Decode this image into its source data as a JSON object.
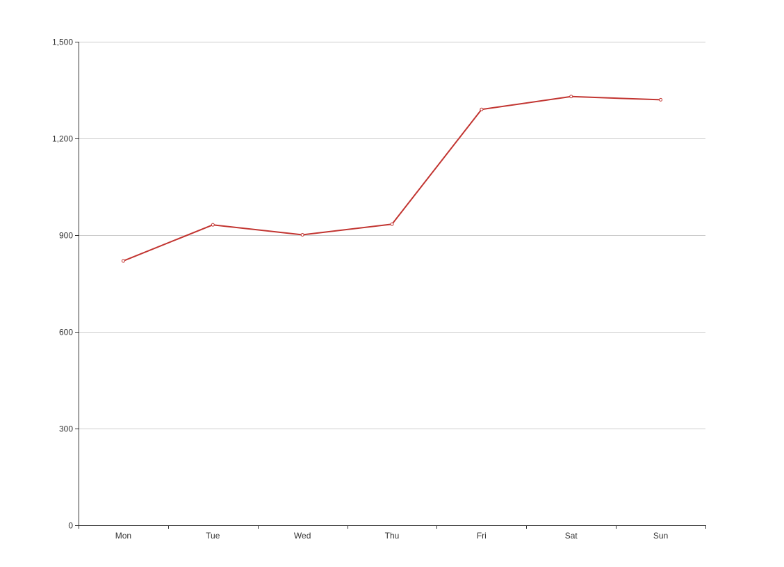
{
  "colors": {
    "line": "#c23531",
    "axis": "#333333",
    "grid": "#cccccc",
    "background": "#ffffff"
  },
  "chart_data": {
    "type": "line",
    "categories": [
      "Mon",
      "Tue",
      "Wed",
      "Thu",
      "Fri",
      "Sat",
      "Sun"
    ],
    "series": [
      {
        "values": [
          820,
          932,
          901,
          934,
          1290,
          1330,
          1320
        ],
        "color": "#c23531"
      }
    ],
    "y_ticks": [
      "0",
      "300",
      "600",
      "900",
      "1,200",
      "1,500"
    ],
    "ylim": [
      0,
      1500
    ],
    "y_tick_values": [
      0,
      300,
      600,
      900,
      1200,
      1500
    ],
    "grid": true,
    "markers": "hollow-circle",
    "title": "",
    "xlabel": "",
    "ylabel": ""
  }
}
